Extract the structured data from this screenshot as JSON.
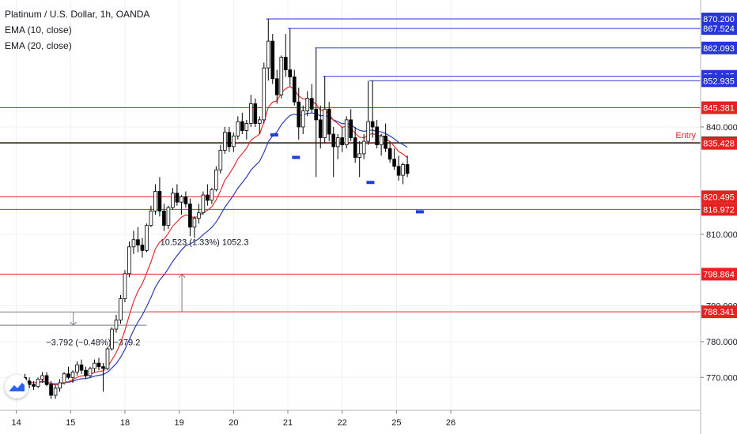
{
  "legend": {
    "symbol": "Platinum / U.S. Dollar, 1h, OANDA",
    "ema10": "EMA (10, close)",
    "ema20": "EMA (20, close)"
  },
  "colors": {
    "candle_up": "#ffffff",
    "candle_down": "#000000",
    "ema10": "#e03030",
    "ema20": "#2d3bb5",
    "resistance_line": "#2a35d6",
    "support_line": "#e52222",
    "entry_line": "#000000",
    "marker": "#1a3fdc",
    "measure": "#787b86"
  },
  "chart_data": {
    "type": "candlestick",
    "title": "Platinum / U.S. Dollar, 1h, OANDA",
    "ylim": [
      760.8,
      875.5
    ],
    "xlim": [
      13.7,
      26.6
    ],
    "x_ticks": [
      {
        "x": 14,
        "label": "14"
      },
      {
        "x": 15,
        "label": "15"
      },
      {
        "x": 16,
        "label": "18"
      },
      {
        "x": 17,
        "label": "19"
      },
      {
        "x": 18,
        "label": "20"
      },
      {
        "x": 19,
        "label": "21"
      },
      {
        "x": 20,
        "label": "22"
      },
      {
        "x": 21,
        "label": "25"
      },
      {
        "x": 22,
        "label": "26"
      }
    ],
    "y_ticks": [
      {
        "value": 770.0,
        "label": "770.000"
      },
      {
        "value": 780.0,
        "label": "780.000"
      },
      {
        "value": 790.0,
        "label": "790.000"
      },
      {
        "value": 810.0,
        "label": "810.000"
      },
      {
        "value": 840.0,
        "label": "840.000"
      }
    ],
    "horizontal_levels": [
      {
        "value": 870.2,
        "label": "870.200",
        "kind": "resistance",
        "x_start": 18.6
      },
      {
        "value": 867.524,
        "label": "867.524",
        "kind": "resistance",
        "x_start": 19.0
      },
      {
        "value": 862.093,
        "label": "862.093",
        "kind": "resistance",
        "x_start": 19.5
      },
      {
        "value": 854.165,
        "label": "854.165",
        "kind": "resistance",
        "x_start": 19.65
      },
      {
        "value": 852.935,
        "label": "852.935",
        "kind": "resistance",
        "x_start": 20.5
      },
      {
        "value": 845.381,
        "label": "845.381",
        "kind": "support",
        "x_start": 13.7
      },
      {
        "value": 835.55,
        "label": "835.550",
        "kind": "entry",
        "x_start": 13.7
      },
      {
        "value": 835.428,
        "label": "835.428",
        "kind": "support",
        "x_start": 13.7
      },
      {
        "value": 820.495,
        "label": "820.495",
        "kind": "support",
        "x_start": 13.7
      },
      {
        "value": 816.972,
        "label": "816.972",
        "kind": "support",
        "x_start": 13.7
      },
      {
        "value": 798.864,
        "label": "798.864",
        "kind": "support",
        "x_start": 13.7
      },
      {
        "value": 788.341,
        "label": "788.341",
        "kind": "support",
        "x_start": 16.4
      }
    ],
    "entry_label": "Entry",
    "markers": [
      {
        "x": 18.75,
        "y": 837.8
      },
      {
        "x": 19.15,
        "y": 831.5
      },
      {
        "x": 20.52,
        "y": 824.5
      },
      {
        "x": 21.43,
        "y": 816.3
      }
    ],
    "measures": [
      {
        "label": "10.523 (1.33%) 1052.3",
        "x": 17.05,
        "y_from": 788.3,
        "y_to": 798.8,
        "label_x": 16.65,
        "label_y": 807.0
      },
      {
        "label": "−3.792 (−0.48%) −379.2",
        "x": 15.05,
        "y_from": 788.3,
        "y_to": 784.6,
        "label_x": 14.55,
        "label_y": 779.0
      }
    ],
    "measure_lines": [
      {
        "y": 788.3,
        "x_from": 13.7,
        "x_to": 16.4
      },
      {
        "y": 784.6,
        "x_from": 13.7,
        "x_to": 16.4
      }
    ],
    "candles": [
      [
        14.0,
        768.0,
        769.0,
        766.0,
        768.5
      ],
      [
        14.08,
        768.5,
        770.5,
        767.5,
        770.0
      ],
      [
        14.16,
        770.0,
        771.0,
        768.5,
        769.0
      ],
      [
        14.24,
        769.0,
        770.0,
        767.0,
        768.0
      ],
      [
        14.32,
        768.0,
        769.0,
        766.5,
        767.5
      ],
      [
        14.4,
        767.5,
        770.0,
        767.0,
        769.5
      ],
      [
        14.48,
        769.5,
        771.5,
        768.5,
        770.5
      ],
      [
        14.56,
        770.5,
        771.5,
        767.5,
        768.0
      ],
      [
        14.64,
        768.0,
        769.0,
        764.0,
        765.0
      ],
      [
        14.72,
        765.0,
        768.0,
        764.0,
        767.0
      ],
      [
        14.8,
        767.0,
        769.5,
        766.0,
        768.5
      ],
      [
        14.88,
        768.5,
        771.5,
        768.0,
        771.0
      ],
      [
        14.96,
        771.0,
        773.0,
        769.5,
        770.0
      ],
      [
        15.04,
        770.0,
        772.0,
        768.5,
        771.5
      ],
      [
        15.12,
        771.5,
        774.5,
        770.5,
        773.5
      ],
      [
        15.2,
        773.5,
        775.0,
        771.0,
        772.0
      ],
      [
        15.28,
        772.0,
        773.0,
        769.5,
        770.5
      ],
      [
        15.36,
        770.5,
        773.0,
        770.0,
        772.5
      ],
      [
        15.44,
        772.5,
        775.0,
        771.5,
        774.0
      ],
      [
        15.52,
        774.0,
        775.5,
        772.0,
        773.0
      ],
      [
        15.6,
        773.0,
        774.0,
        766.0,
        772.5
      ],
      [
        15.68,
        772.5,
        778.5,
        772.0,
        778.0
      ],
      [
        15.76,
        778.0,
        784.0,
        777.5,
        783.5
      ],
      [
        15.84,
        783.5,
        787.5,
        782.5,
        786.0
      ],
      [
        15.92,
        786.0,
        793.0,
        785.0,
        792.0
      ],
      [
        16.0,
        792.0,
        800.0,
        791.0,
        799.0
      ],
      [
        16.08,
        799.0,
        808.0,
        798.0,
        806.5
      ],
      [
        16.16,
        806.5,
        811.0,
        804.5,
        808.5
      ],
      [
        16.24,
        808.5,
        812.0,
        805.0,
        807.0
      ],
      [
        16.32,
        807.0,
        809.0,
        803.5,
        805.5
      ],
      [
        16.4,
        805.5,
        813.0,
        805.0,
        812.5
      ],
      [
        16.48,
        812.5,
        818.0,
        812.0,
        816.5
      ],
      [
        16.56,
        816.5,
        824.0,
        815.5,
        822.0
      ],
      [
        16.64,
        822.0,
        826.0,
        815.0,
        816.5
      ],
      [
        16.72,
        816.5,
        818.5,
        811.0,
        812.5
      ],
      [
        16.8,
        812.5,
        818.0,
        811.5,
        817.5
      ],
      [
        16.88,
        817.5,
        823.0,
        817.0,
        821.5
      ],
      [
        16.96,
        821.5,
        824.0,
        818.0,
        819.0
      ],
      [
        17.04,
        819.0,
        821.0,
        815.5,
        820.5
      ],
      [
        17.12,
        820.5,
        822.0,
        817.5,
        818.5
      ],
      [
        17.2,
        818.5,
        820.0,
        809.5,
        812.0
      ],
      [
        17.28,
        812.0,
        815.0,
        809.0,
        814.5
      ],
      [
        17.36,
        814.5,
        818.5,
        813.0,
        816.0
      ],
      [
        17.44,
        816.0,
        822.0,
        815.5,
        821.0
      ],
      [
        17.52,
        821.0,
        824.0,
        818.0,
        819.5
      ],
      [
        17.6,
        819.5,
        823.0,
        818.5,
        822.5
      ],
      [
        17.68,
        822.5,
        829.0,
        822.0,
        828.0
      ],
      [
        17.76,
        828.0,
        835.0,
        827.0,
        833.5
      ],
      [
        17.84,
        833.5,
        840.0,
        832.5,
        838.5
      ],
      [
        17.92,
        838.5,
        840.0,
        833.0,
        834.5
      ],
      [
        18.0,
        834.5,
        838.5,
        833.0,
        837.5
      ],
      [
        18.08,
        837.5,
        843.0,
        836.5,
        841.5
      ],
      [
        18.16,
        841.5,
        844.0,
        838.0,
        839.0
      ],
      [
        18.24,
        839.0,
        842.0,
        836.5,
        841.0
      ],
      [
        18.32,
        841.0,
        849.0,
        840.0,
        846.5
      ],
      [
        18.4,
        846.5,
        848.0,
        840.0,
        841.0
      ],
      [
        18.48,
        841.0,
        843.0,
        838.0,
        842.0
      ],
      [
        18.56,
        842.0,
        858.0,
        841.0,
        856.5
      ],
      [
        18.64,
        856.5,
        870.2,
        853.0,
        864.0
      ],
      [
        18.72,
        864.0,
        866.0,
        852.0,
        853.5
      ],
      [
        18.8,
        853.5,
        856.0,
        846.5,
        849.0
      ],
      [
        18.88,
        849.0,
        860.0,
        848.0,
        859.5
      ],
      [
        18.96,
        859.5,
        866.0,
        854.0,
        856.0
      ],
      [
        19.04,
        856.0,
        867.5,
        851.5,
        854.0
      ],
      [
        19.12,
        854.0,
        856.0,
        846.0,
        847.0
      ],
      [
        19.2,
        847.0,
        851.0,
        836.5,
        840.0
      ],
      [
        19.28,
        840.0,
        846.0,
        838.0,
        844.5
      ],
      [
        19.36,
        844.5,
        850.0,
        843.0,
        848.0
      ],
      [
        19.44,
        848.0,
        852.0,
        844.0,
        845.0
      ],
      [
        19.52,
        845.0,
        862.0,
        826.0,
        842.0
      ],
      [
        19.6,
        842.0,
        846.0,
        834.0,
        837.0
      ],
      [
        19.68,
        837.0,
        854.2,
        835.5,
        845.0
      ],
      [
        19.76,
        845.0,
        847.0,
        836.0,
        838.0
      ],
      [
        19.84,
        838.0,
        840.0,
        826.0,
        834.5
      ],
      [
        19.92,
        834.5,
        838.0,
        831.0,
        837.0
      ],
      [
        20.0,
        837.0,
        840.0,
        833.0,
        835.0
      ],
      [
        20.08,
        835.0,
        843.0,
        834.0,
        842.0
      ],
      [
        20.16,
        842.0,
        845.0,
        836.0,
        837.0
      ],
      [
        20.24,
        837.0,
        840.0,
        830.0,
        831.5
      ],
      [
        20.32,
        831.5,
        836.0,
        826.0,
        832.5
      ],
      [
        20.4,
        832.5,
        838.0,
        831.0,
        836.0
      ],
      [
        20.48,
        836.0,
        852.9,
        835.0,
        841.5
      ],
      [
        20.56,
        841.5,
        853.0,
        837.0,
        840.0
      ],
      [
        20.64,
        840.0,
        842.0,
        834.0,
        835.0
      ],
      [
        20.72,
        835.0,
        838.0,
        832.0,
        837.5
      ],
      [
        20.8,
        837.5,
        841.0,
        833.0,
        834.0
      ],
      [
        20.88,
        834.0,
        836.0,
        830.0,
        831.0
      ],
      [
        20.96,
        831.0,
        834.0,
        828.0,
        829.0
      ],
      [
        21.04,
        829.0,
        832.0,
        825.0,
        826.5
      ],
      [
        21.12,
        826.5,
        830.0,
        824.0,
        829.5
      ],
      [
        21.2,
        829.5,
        832.0,
        826.0,
        827.0
      ]
    ]
  }
}
